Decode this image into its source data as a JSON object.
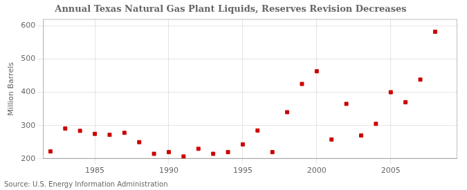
{
  "chart_data": {
    "type": "scatter",
    "title": "Annual Texas Natural Gas Plant Liquids, Reserves Revision Decreases",
    "ylabel": "Million Barrels",
    "annotations": [
      "Source: U.S. Energy Information Administration"
    ],
    "x": [
      1982,
      1983,
      1984,
      1985,
      1986,
      1987,
      1988,
      1989,
      1990,
      1991,
      1992,
      1993,
      1994,
      1995,
      1996,
      1997,
      1998,
      1999,
      2000,
      2001,
      2002,
      2003,
      2004,
      2005,
      2006,
      2007,
      2008
    ],
    "values": [
      222,
      291,
      284,
      275,
      272,
      278,
      250,
      215,
      220,
      207,
      230,
      215,
      220,
      243,
      285,
      220,
      340,
      425,
      463,
      258,
      365,
      270,
      305,
      400,
      370,
      438,
      582
    ],
    "color": "#cc0000",
    "marker": "square",
    "xlim": [
      1981.5,
      2009.5
    ],
    "xticks": [
      1985,
      1990,
      1995,
      2000,
      2005
    ],
    "ylim": [
      200,
      620
    ],
    "yticks": [
      200,
      300,
      400,
      500,
      600
    ],
    "grid": true
  }
}
